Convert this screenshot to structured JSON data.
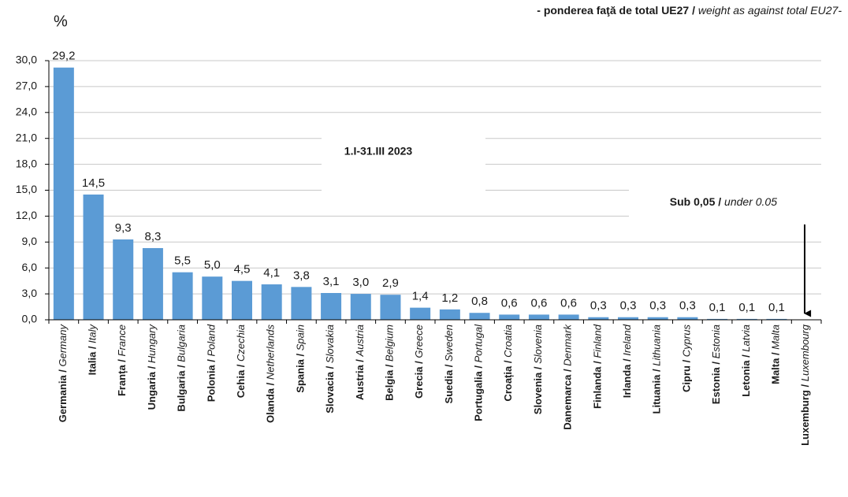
{
  "chart_data": {
    "type": "bar",
    "subtitle": "- ponderea faţă de total UE27 / weight as against total EU27-",
    "ylabel": "%",
    "period": "1.I-31.III 2023",
    "annotation": "Sub 0,05 / under 0.05",
    "color": "#5b9bd5",
    "grid": true,
    "categories": [
      "Germania / Germany",
      "Italia / Italy",
      "Franța / France",
      "Ungaria / Hungary",
      "Bulgaria / Bulgaria",
      "Polonia / Poland",
      "Cehia / Czechia",
      "Olanda / Netherlands",
      "Spania / Spain",
      "Slovacia / Slovakia",
      "Austria / Austria",
      "Belgia / Belgium",
      "Grecia / Greece",
      "Suedia / Sweden",
      "Portugalia / Portugal",
      "Croația / Croatia",
      "Slovenia / Slovenia",
      "Danemarca / Denmark",
      "Finlanda / Finland",
      "Irlanda / Ireland",
      "Lituania / Lithuania",
      "Cipru / Cyprus",
      "Estonia / Estonia",
      "Letonia / Latvia",
      "Malta / Malta",
      "Luxemburg / Luxembourg"
    ],
    "values": [
      29.2,
      14.5,
      9.3,
      8.3,
      5.5,
      5.0,
      4.5,
      4.1,
      3.8,
      3.1,
      3.0,
      2.9,
      1.4,
      1.2,
      0.8,
      0.6,
      0.6,
      0.6,
      0.3,
      0.3,
      0.3,
      0.3,
      0.1,
      0.1,
      0.1,
      null
    ],
    "value_labels": [
      "29,2",
      "14,5",
      "9,3",
      "8,3",
      "5,5",
      "5,0",
      "4,5",
      "4,1",
      "3,8",
      "3,1",
      "3,0",
      "2,9",
      "1,4",
      "1,2",
      "0,8",
      "0,6",
      "0,6",
      "0,6",
      "0,3",
      "0,3",
      "0,3",
      "0,3",
      "0,1",
      "0,1",
      "0,1",
      null
    ],
    "ylim": [
      0,
      30
    ],
    "yticks": [
      {
        "value": 0,
        "label": "0,0"
      },
      {
        "value": 3,
        "label": "3,0"
      },
      {
        "value": 6,
        "label": "6,0"
      },
      {
        "value": 9,
        "label": "9,0"
      },
      {
        "value": 12,
        "label": "12,0"
      },
      {
        "value": 15,
        "label": "15,0"
      },
      {
        "value": 18,
        "label": "18,0"
      },
      {
        "value": 21,
        "label": "21,0"
      },
      {
        "value": 24,
        "label": "24,0"
      },
      {
        "value": 27,
        "label": "27,0"
      },
      {
        "value": 30,
        "label": "30,0"
      }
    ]
  }
}
